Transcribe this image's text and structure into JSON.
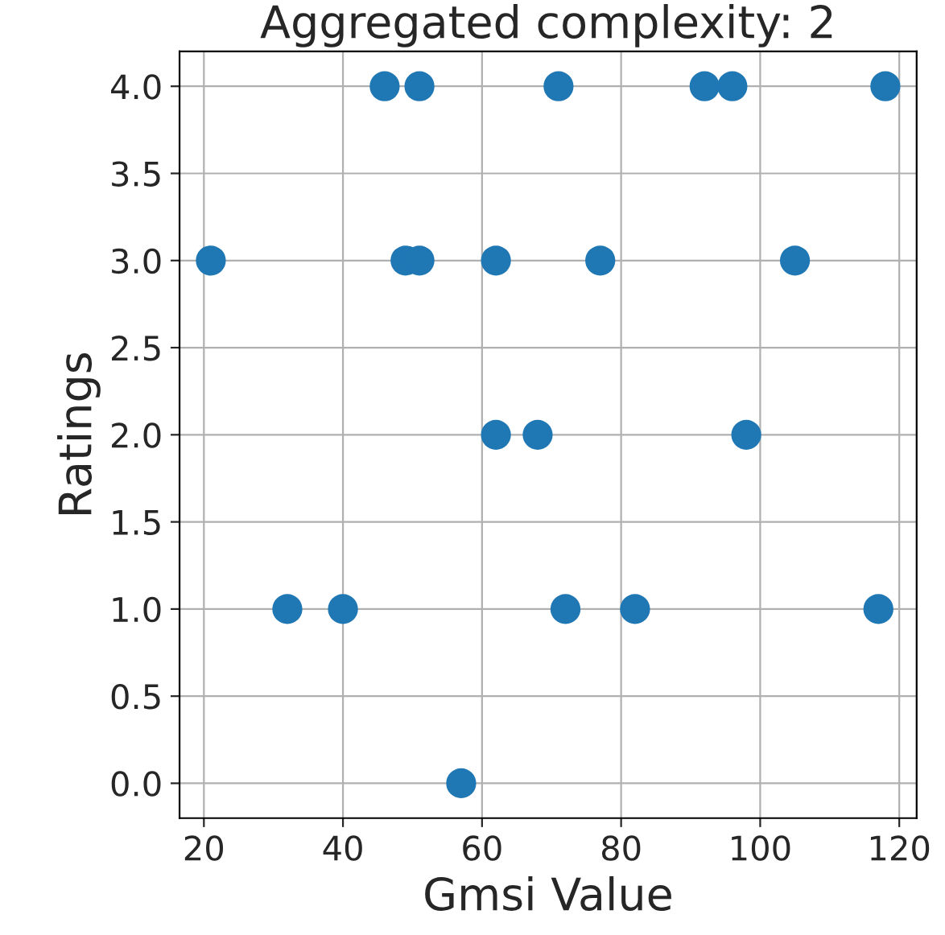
{
  "chart_data": {
    "type": "scatter",
    "title": "Aggregated complexity: 2",
    "xlabel": "Gmsi Value",
    "ylabel": "Ratings",
    "x": [
      46,
      51,
      71,
      92,
      96,
      118,
      21,
      49,
      51,
      62,
      77,
      105,
      62,
      68,
      98,
      32,
      40,
      72,
      82,
      117,
      57
    ],
    "values": [
      4,
      4,
      4,
      4,
      4,
      4,
      3,
      3,
      3,
      3,
      3,
      3,
      2,
      2,
      2,
      1,
      1,
      1,
      1,
      1,
      0
    ],
    "color": "#1f77b4",
    "marker": "circle",
    "grid": true,
    "xlim": [
      16.5,
      122.5
    ],
    "xticks": [
      20,
      40,
      60,
      80,
      100,
      120
    ],
    "ylim": [
      -0.2,
      4.2
    ],
    "yticks": [
      {
        "value": 0,
        "label": "0.0"
      },
      {
        "value": 0.5,
        "label": "0.5"
      },
      {
        "value": 1,
        "label": "1.0"
      },
      {
        "value": 1.5,
        "label": "1.5"
      },
      {
        "value": 2,
        "label": "2.0"
      },
      {
        "value": 2.5,
        "label": "2.5"
      },
      {
        "value": 3,
        "label": "3.0"
      },
      {
        "value": 3.5,
        "label": "3.5"
      },
      {
        "value": 4,
        "label": "4.0"
      }
    ]
  }
}
